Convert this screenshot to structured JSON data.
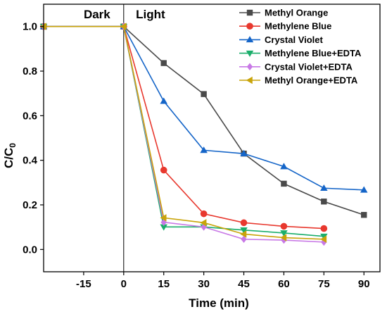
{
  "chart_data": {
    "type": "line",
    "xlabel": "Time (min)",
    "ylabel": "C/C",
    "ylabel_sub": "0",
    "xlim": [
      -30,
      96
    ],
    "ylim": [
      -0.1,
      1.1
    ],
    "xticks": [
      -15,
      0,
      15,
      30,
      45,
      60,
      75,
      90
    ],
    "yticks": [
      0.0,
      0.2,
      0.4,
      0.6,
      0.8,
      1.0
    ],
    "ytick_labels": [
      "0.0",
      "0.2",
      "0.4",
      "0.6",
      "0.8",
      "1.0"
    ],
    "divider_x": 0,
    "regions": [
      {
        "label": "Dark",
        "x_center": -10
      },
      {
        "label": "Light",
        "x_center": 9
      }
    ],
    "legend_position": "top-right",
    "series": [
      {
        "name": "Methyl Orange",
        "color": "#4a4a4a",
        "marker": "square",
        "x": [
          -30,
          0,
          15,
          30,
          45,
          60,
          75,
          90
        ],
        "y": [
          1.0,
          1.0,
          0.836,
          0.697,
          0.43,
          0.295,
          0.215,
          0.155
        ]
      },
      {
        "name": "Methylene Blue",
        "color": "#e8382e",
        "marker": "circle",
        "x": [
          -30,
          0,
          15,
          30,
          45,
          60,
          75
        ],
        "y": [
          1.0,
          1.0,
          0.356,
          0.16,
          0.12,
          0.104,
          0.094
        ]
      },
      {
        "name": "Crystal Violet",
        "color": "#1565c8",
        "marker": "triangle-up",
        "x": [
          -30,
          0,
          15,
          30,
          45,
          60,
          75,
          90
        ],
        "y": [
          1.0,
          1.0,
          0.665,
          0.445,
          0.43,
          0.372,
          0.275,
          0.267
        ]
      },
      {
        "name": "Methylene Blue+EDTA",
        "color": "#1bae6b",
        "marker": "triangle-down",
        "x": [
          -30,
          0,
          15,
          30,
          45,
          60,
          75
        ],
        "y": [
          1.0,
          1.0,
          0.101,
          0.101,
          0.087,
          0.074,
          0.059
        ]
      },
      {
        "name": "Crystal Violet+EDTA",
        "color": "#c879e6",
        "marker": "diamond",
        "x": [
          -30,
          0,
          15,
          30,
          45,
          60,
          75
        ],
        "y": [
          1.0,
          1.0,
          0.122,
          0.101,
          0.046,
          0.042,
          0.033
        ]
      },
      {
        "name": "Methyl Orange+EDTA",
        "color": "#c9a40a",
        "marker": "triangle-left",
        "x": [
          -30,
          0,
          15,
          30,
          45,
          60,
          75
        ],
        "y": [
          1.0,
          1.0,
          0.142,
          0.12,
          0.069,
          0.053,
          0.046
        ]
      }
    ]
  }
}
